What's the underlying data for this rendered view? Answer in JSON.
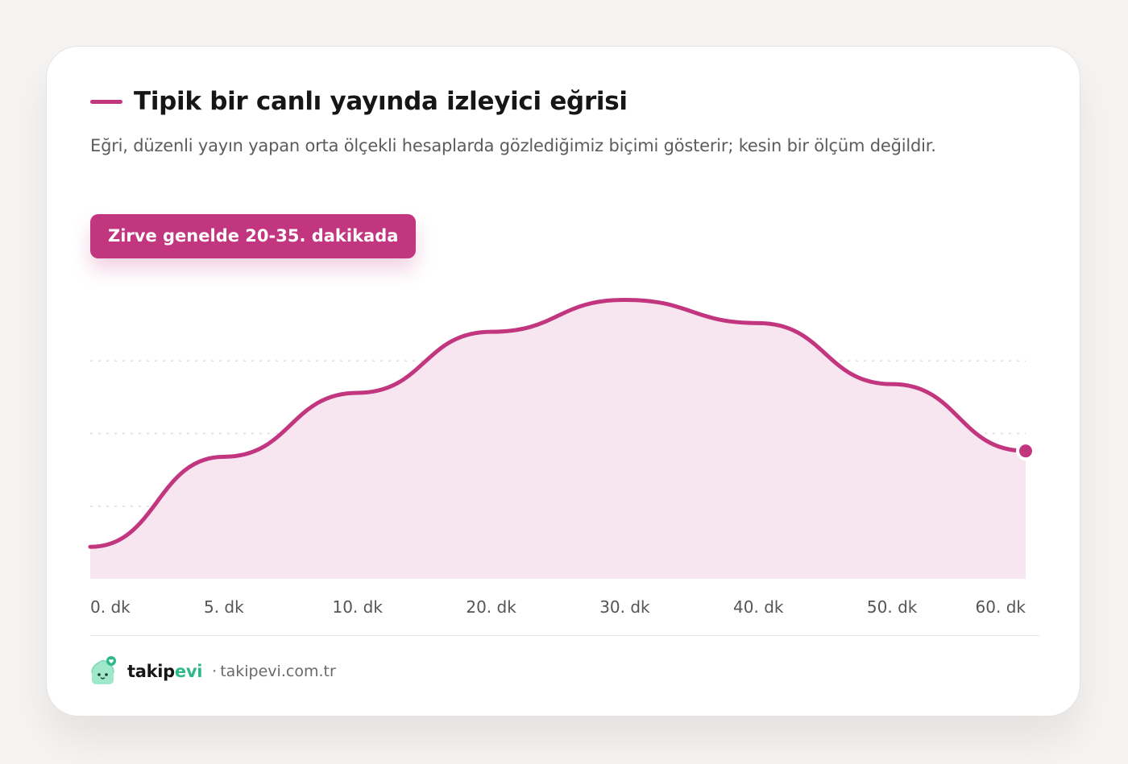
{
  "card": {
    "title": "Tipik bir canlı yayında izleyici eğrisi",
    "subtitle": "Eğri, düzenli yayın yapan orta ölçekli hesaplarda gözlediğimiz biçimi gösterir; kesin bir ölçüm değildir.",
    "badge": "Zirve genelde 20-35. dakikada"
  },
  "colors": {
    "accent": "#c2357f",
    "fill": "#f7e6f0",
    "grid": "#dcdcdc",
    "brand_green": "#2eb88a"
  },
  "chart_data": {
    "type": "area",
    "title": "Tipik bir canlı yayında izleyici eğrisi",
    "categories": [
      "0. dk",
      "5. dk",
      "10. dk",
      "20. dk",
      "30. dk",
      "40. dk",
      "50. dk",
      "60. dk"
    ],
    "values": [
      0.11,
      0.42,
      0.64,
      0.85,
      0.96,
      0.88,
      0.67,
      0.44
    ],
    "ylim": [
      0,
      1
    ],
    "y_ticks_hidden": true,
    "grid": true,
    "legend": "none",
    "end_marker": true
  },
  "footer": {
    "brand_main": "takip",
    "brand_accent": "evi",
    "separator": "·",
    "url": "takipevi.com.tr",
    "logo_icon": "house-mascot-heart-icon"
  }
}
